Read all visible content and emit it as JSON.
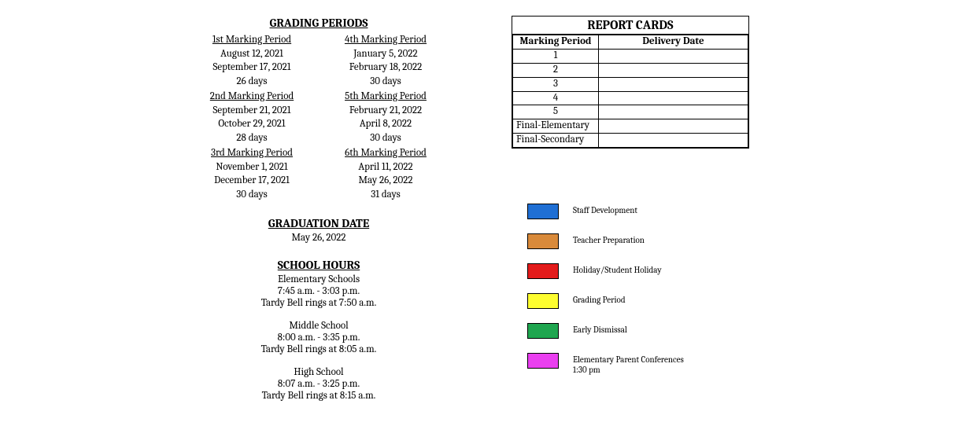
{
  "grading_periods": {
    "header": "GRADING PERIODS",
    "left": [
      {
        "title": "1st Marking Period",
        "start": "August 12, 2021",
        "end": "September 17, 2021",
        "days": "26 days"
      },
      {
        "title": "2nd Marking Period",
        "start": "September 21, 2021",
        "end": "October 29, 2021",
        "days": "28 days"
      },
      {
        "title": "3rd Marking Period",
        "start": "November 1, 2021",
        "end": "December 17, 2021",
        "days": "30 days"
      }
    ],
    "right": [
      {
        "title": "4th Marking Period",
        "start": "January 5, 2022",
        "end": "February 18, 2022",
        "days": "30 days"
      },
      {
        "title": "5th Marking Period",
        "start": "February 21, 2022",
        "end": "April 8, 2022",
        "days": "30 days"
      },
      {
        "title": "6th Marking Period",
        "start": "April 11, 2022",
        "end": "May 26, 2022",
        "days": "31 days"
      }
    ]
  },
  "graduation": {
    "header": "GRADUATION DATE",
    "date": "May 26, 2022"
  },
  "school_hours": {
    "header": "SCHOOL HOURS",
    "schools": [
      {
        "name": "Elementary Schools",
        "hours": "7:45 a.m. - 3:03 p.m.",
        "tardy": "Tardy Bell rings at 7:50 a.m."
      },
      {
        "name": "Middle School",
        "hours": "8:00 a.m. - 3:35 p.m.",
        "tardy": "Tardy Bell rings at 8:05 a.m."
      },
      {
        "name": "High School",
        "hours": "8:07 a.m. - 3:25 p.m.",
        "tardy": "Tardy Bell rings at 8:15 a.m."
      }
    ]
  },
  "report_cards": {
    "title": "REPORT CARDS",
    "col1": "Marking Period",
    "col2": "Delivery Date",
    "rows": [
      {
        "mp": "1",
        "align": "center",
        "date": ""
      },
      {
        "mp": "2",
        "align": "center",
        "date": ""
      },
      {
        "mp": "3",
        "align": "center",
        "date": ""
      },
      {
        "mp": "4",
        "align": "center",
        "date": ""
      },
      {
        "mp": "5",
        "align": "center",
        "date": ""
      },
      {
        "mp": "Final-Elementary",
        "align": "left",
        "date": ""
      },
      {
        "mp": "Final-Secondary",
        "align": "left",
        "date": ""
      }
    ]
  },
  "legend": [
    {
      "label": "Staff Development",
      "color": "#1f6fd4"
    },
    {
      "label": "Teacher Preparation",
      "color": "#d98a3a"
    },
    {
      "label": "Holiday/Student Holiday",
      "color": "#e31b1b"
    },
    {
      "label": "Grading Period",
      "color": "#fdfd2f"
    },
    {
      "label": "Early Dismissal",
      "color": "#1fa64f"
    },
    {
      "label": "Elementary Parent Conferences 1:30 pm",
      "color": "#ea3ff0"
    }
  ]
}
